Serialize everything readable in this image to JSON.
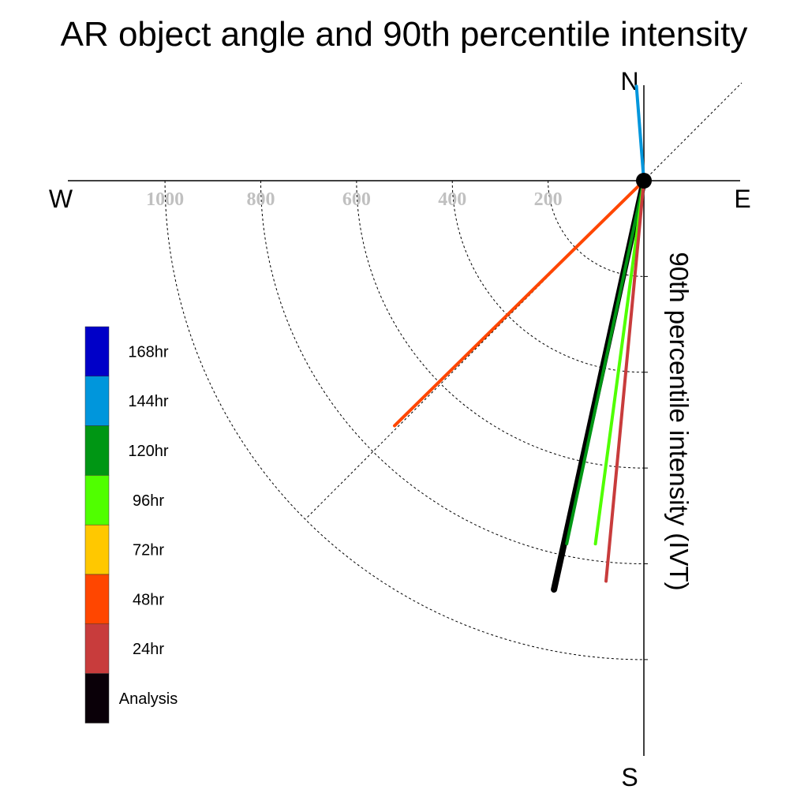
{
  "chart_data": {
    "type": "polar-vector",
    "title": "AR object angle and 90th percentile intensity",
    "ylabel": "90th percentile intensity (IVT)",
    "compass": {
      "north": "N",
      "south": "S",
      "east": "E",
      "west": "W"
    },
    "radial_ticks": [
      200,
      400,
      600,
      800,
      1000
    ],
    "radial_range": [
      0,
      1000
    ],
    "grid": true,
    "legend_position": "left",
    "legend": [
      {
        "label": "168hr",
        "color": "#0000c8"
      },
      {
        "label": "144hr",
        "color": "#0096dc"
      },
      {
        "label": "120hr",
        "color": "#009614"
      },
      {
        "label": "96hr",
        "color": "#50ff00"
      },
      {
        "label": "72hr",
        "color": "#ffc800"
      },
      {
        "label": "48hr",
        "color": "#ff4600"
      },
      {
        "label": "24hr",
        "color": "#c83c3c"
      },
      {
        "label": "Analysis",
        "color": "#0a0008"
      }
    ],
    "series": [
      {
        "name": "Analysis",
        "color": "#000000",
        "angle_deg": 192.4,
        "intensity": 874,
        "width": 8
      },
      {
        "name": "120hr",
        "color": "#009614",
        "angle_deg": 192.0,
        "intensity": 775,
        "width": 4
      },
      {
        "name": "96hr",
        "color": "#50ff00",
        "angle_deg": 187.6,
        "intensity": 765,
        "width": 4
      },
      {
        "name": "24hr",
        "color": "#c83c3c",
        "angle_deg": 185.4,
        "intensity": 840,
        "width": 4
      },
      {
        "name": "48hr",
        "color": "#ff4600",
        "angle_deg": 225.5,
        "intensity": 730,
        "width": 4
      },
      {
        "name": "144hr",
        "color": "#0096dc",
        "angle_deg": 355.5,
        "intensity": 198,
        "width": 4
      }
    ]
  }
}
